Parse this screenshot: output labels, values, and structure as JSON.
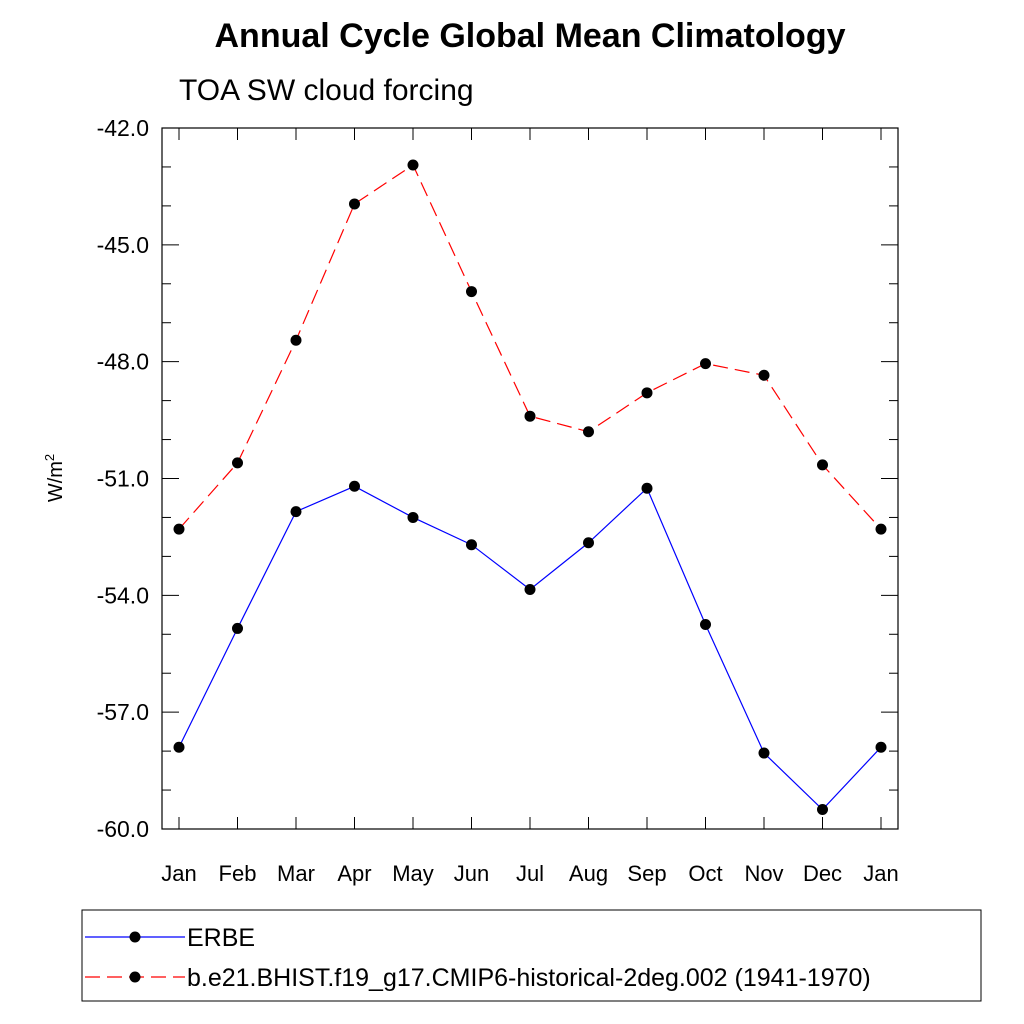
{
  "chart_data": {
    "type": "line",
    "title": "Annual Cycle Global Mean Climatology",
    "subtitle": "TOA SW cloud forcing",
    "ylabel_base": "W/m",
    "ylabel_sup": "2",
    "xlabel": "",
    "categories": [
      "Jan",
      "Feb",
      "Mar",
      "Apr",
      "May",
      "Jun",
      "Jul",
      "Aug",
      "Sep",
      "Oct",
      "Nov",
      "Dec",
      "Jan"
    ],
    "ylim": [
      -60.0,
      -42.0
    ],
    "yticks": [
      -42.0,
      -45.0,
      -48.0,
      -51.0,
      -54.0,
      -57.0,
      -60.0
    ],
    "ytick_labels": [
      "-42.0",
      "-45.0",
      "-48.0",
      "-51.0",
      "-54.0",
      "-57.0",
      "-60.0"
    ],
    "series": [
      {
        "name": "ERBE",
        "color": "#0000ff",
        "dash": "solid",
        "values": [
          -57.9,
          -54.85,
          -51.85,
          -51.2,
          -52.0,
          -52.7,
          -53.85,
          -52.65,
          -51.25,
          -54.75,
          -58.05,
          -59.5,
          -57.9
        ]
      },
      {
        "name": "b.e21.BHIST.f19_g17.CMIP6-historical-2deg.002 (1941-1970)",
        "color": "#ff0000",
        "dash": "dashed",
        "values": [
          -52.3,
          -50.6,
          -47.45,
          -43.95,
          -42.95,
          -46.2,
          -49.4,
          -49.8,
          -48.8,
          -48.05,
          -48.35,
          -50.65,
          -52.3
        ]
      }
    ],
    "marker": "filled-circle",
    "grid": false,
    "legend_position": "bottom"
  }
}
